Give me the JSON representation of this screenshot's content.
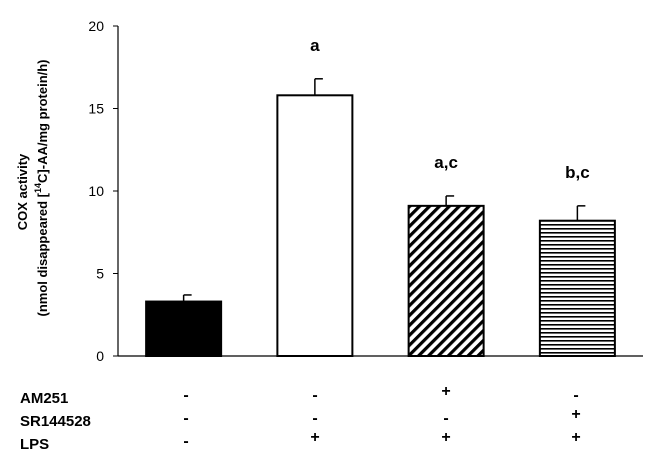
{
  "chart_data": {
    "type": "bar",
    "categories": [
      "Control",
      "LPS",
      "LPS + AM251",
      "LPS + SR144528"
    ],
    "values": [
      3.3,
      15.8,
      9.1,
      8.2
    ],
    "errors": [
      0.4,
      1.0,
      0.6,
      0.9
    ],
    "fills": [
      "solid-black",
      "white",
      "diagonal-hatch",
      "horizontal-lines"
    ],
    "annotations": [
      "",
      "a",
      "a,c",
      "b,c"
    ],
    "ylabel_line1": "COX activity",
    "ylabel_line2_pre": "(nmol disappeared [",
    "ylabel_sup": "14",
    "ylabel_line2_post": "C]-AA/mg protein/h)",
    "yticks": [
      0,
      5,
      10,
      15,
      20
    ],
    "ylim": [
      0,
      20
    ],
    "grid": false,
    "treatments": [
      {
        "label": "AM251",
        "signs": [
          "-",
          "-",
          "+",
          "-"
        ]
      },
      {
        "label": "SR144528",
        "signs": [
          "-",
          "-",
          "-",
          "+"
        ]
      },
      {
        "label": "LPS",
        "signs": [
          "-",
          "+",
          "+",
          "+"
        ]
      }
    ],
    "colors": {
      "bar_border": "#000000",
      "solid_fill": "#000000",
      "open_fill": "#ffffff"
    }
  }
}
